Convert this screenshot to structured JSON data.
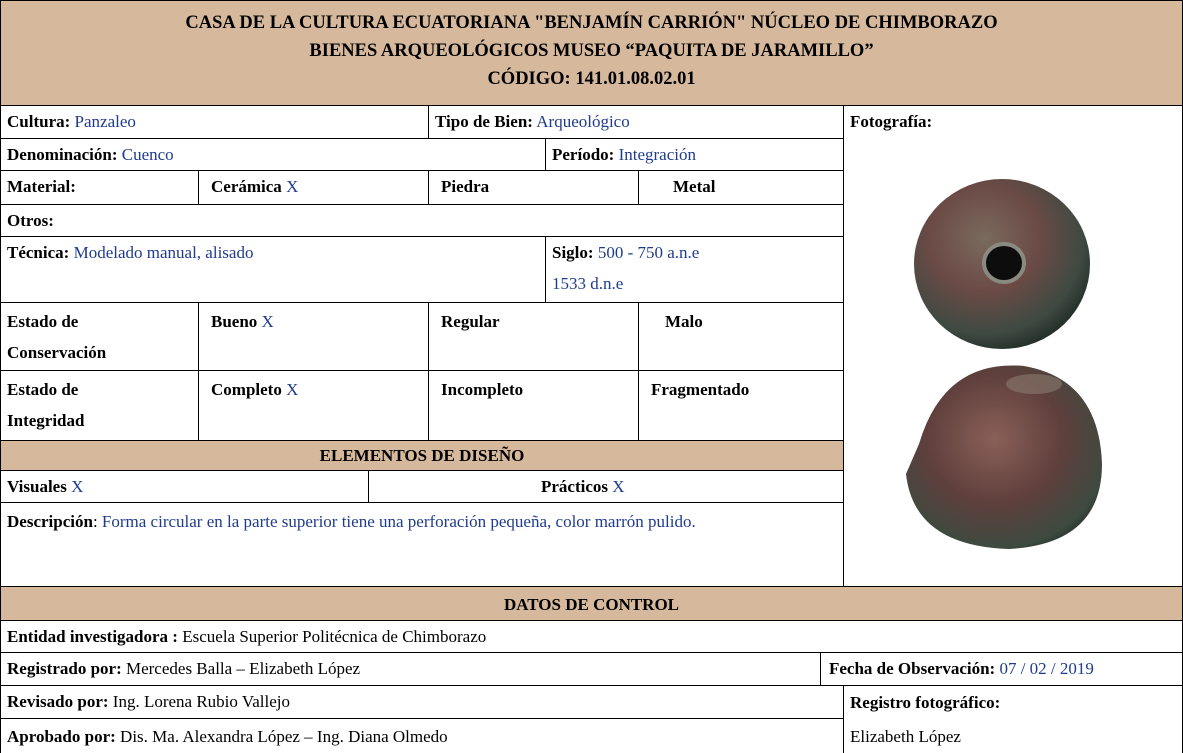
{
  "header": {
    "lines": [
      "CASA DE LA CULTURA ECUATORIANA \"BENJAMÍN CARRIÓN\" NÚCLEO DE CHIMBORAZO",
      "BIENES ARQUEOLÓGICOS MUSEO “PAQUITA DE JARAMILLO”",
      "CÓDIGO: 141.01.08.02.01"
    ]
  },
  "form": {
    "cultura": {
      "label": "Cultura:",
      "value": "Panzaleo"
    },
    "tipo_bien": {
      "label": "Tipo de Bien:",
      "value": "Arqueológico"
    },
    "fotografia": "Fotografía:",
    "denominacion": {
      "label": "Denominación:",
      "value": "Cuenco"
    },
    "periodo": {
      "label": "Período:",
      "value": "Integración"
    },
    "material": {
      "label": "Material:",
      "options": [
        {
          "label": "Cerámica",
          "mark": "X"
        },
        {
          "label": "Piedra"
        },
        {
          "label": "Metal"
        }
      ]
    },
    "otros": "Otros:",
    "tecnica": {
      "label": "Técnica:",
      "value": "Modelado manual, alisado"
    },
    "siglo": {
      "label": "Siglo:",
      "values": [
        "500 - 750 a.n.e",
        "1533 d.n.e"
      ]
    },
    "conservacion": {
      "label": [
        "Estado de",
        "Conservación"
      ],
      "options": [
        {
          "label": "Bueno",
          "mark": "X"
        },
        {
          "label": "Regular"
        },
        {
          "label": "Malo"
        }
      ]
    },
    "integridad": {
      "label": [
        "Estado de",
        "Integridad"
      ],
      "options": [
        {
          "label": "Completo",
          "mark": "X"
        },
        {
          "label": "Incompleto"
        },
        {
          "label": "Fragmentado"
        }
      ]
    },
    "elementos_title": "ELEMENTOS DE DISEÑO",
    "visuales": {
      "label": "Visuales",
      "mark": "X"
    },
    "practicos": {
      "label": "Prácticos",
      "mark": "X"
    },
    "descripcion": {
      "label": "Descripción",
      "value": "Forma circular en la parte superior tiene una perforación pequeña, color marrón pulido."
    }
  },
  "control": {
    "title": "DATOS DE CONTROL",
    "entidad": {
      "label": "Entidad investigadora :",
      "value": "Escuela Superior Politécnica de Chimborazo"
    },
    "registrado": {
      "label": "Registrado por:",
      "value": "Mercedes Balla – Elizabeth López"
    },
    "fecha": {
      "label": "Fecha de Observación:",
      "value": "07 / 02 / 2019"
    },
    "revisado": {
      "label": "Revisado por:",
      "value": "Ing. Lorena Rubio Vallejo"
    },
    "registro_fotografico": {
      "label": "Registro fotográfico:",
      "value": "Elizabeth López"
    },
    "aprobado": {
      "label": "Aprobado por:",
      "value": "Dis. Ma. Alexandra López – Ing. Diana Olmedo"
    }
  }
}
